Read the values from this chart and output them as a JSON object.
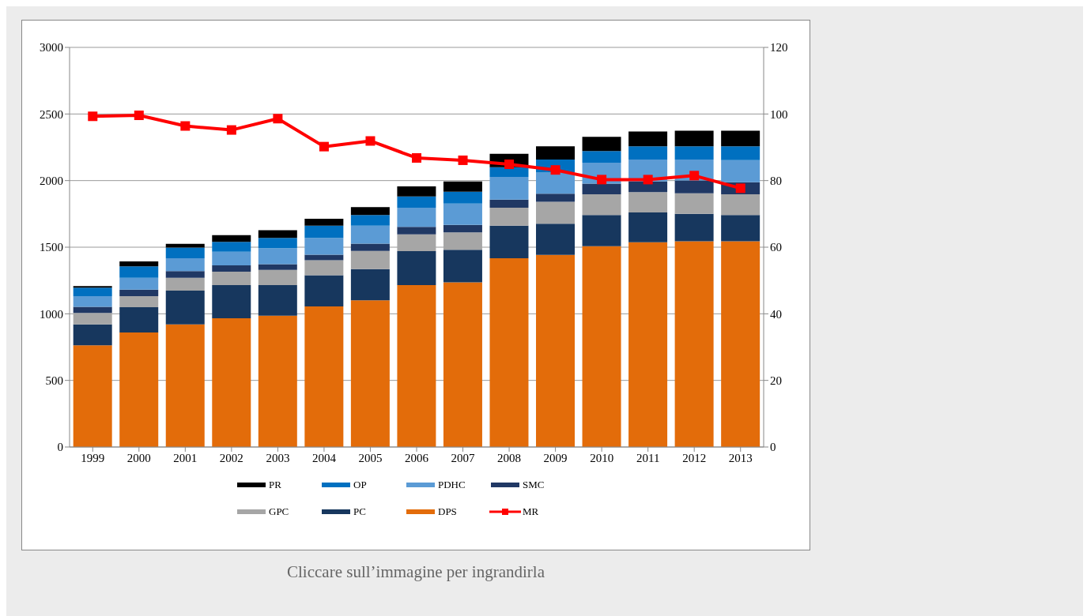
{
  "chart_data": {
    "type": "bar",
    "stacked": true,
    "categories": [
      "1999",
      "2000",
      "2001",
      "2002",
      "2003",
      "2004",
      "2005",
      "2006",
      "2007",
      "2008",
      "2009",
      "2010",
      "2011",
      "2012",
      "2013"
    ],
    "series": [
      {
        "name": "DPS",
        "color": "#e36c0a",
        "values": [
          763,
          860,
          921,
          966,
          986,
          1056,
          1102,
          1216,
          1236,
          1417,
          1442,
          1507,
          1537,
          1545,
          1545
        ]
      },
      {
        "name": "PC",
        "color": "#17375e",
        "values": [
          158,
          190,
          253,
          250,
          230,
          234,
          234,
          255,
          244,
          244,
          235,
          234,
          224,
          206,
          196
        ]
      },
      {
        "name": "GPC",
        "color": "#a6a6a6",
        "values": [
          85,
          82,
          96,
          100,
          114,
          112,
          136,
          126,
          131,
          136,
          164,
          156,
          152,
          154,
          156
        ]
      },
      {
        "name": "SMC",
        "color": "#203864",
        "values": [
          46,
          50,
          50,
          48,
          42,
          42,
          55,
          56,
          56,
          60,
          60,
          80,
          81,
          96,
          90
        ]
      },
      {
        "name": "PDHC",
        "color": "#5b9bd5",
        "values": [
          80,
          88,
          97,
          102,
          120,
          126,
          134,
          144,
          160,
          170,
          160,
          157,
          164,
          157,
          167
        ]
      },
      {
        "name": "OP",
        "color": "#0070c0",
        "values": [
          64,
          86,
          80,
          74,
          78,
          91,
          80,
          84,
          90,
          74,
          97,
          88,
          100,
          100,
          104
        ]
      },
      {
        "name": "PR",
        "color": "#000000",
        "values": [
          12,
          37,
          28,
          51,
          57,
          52,
          60,
          76,
          77,
          100,
          100,
          106,
          110,
          116,
          116
        ]
      },
      {
        "name": "MR",
        "type": "line",
        "axis": "y2",
        "color": "#ff0000",
        "marker": "square",
        "values": [
          99.3,
          99.6,
          96.4,
          95.2,
          98.6,
          90.2,
          91.9,
          86.8,
          86.1,
          84.9,
          83.2,
          80.3,
          80.3,
          81.5,
          77.7
        ]
      }
    ],
    "ylim": [
      0,
      3000
    ],
    "yticks": [
      0,
      500,
      1000,
      1500,
      2000,
      2500,
      3000
    ],
    "y2lim": [
      0,
      120
    ],
    "y2ticks": [
      0,
      20,
      40,
      60,
      80,
      100,
      120
    ],
    "grid": "y",
    "legend": "bottom",
    "annotations": [
      "Cliccare sull’immagine per ingrandirla"
    ]
  }
}
